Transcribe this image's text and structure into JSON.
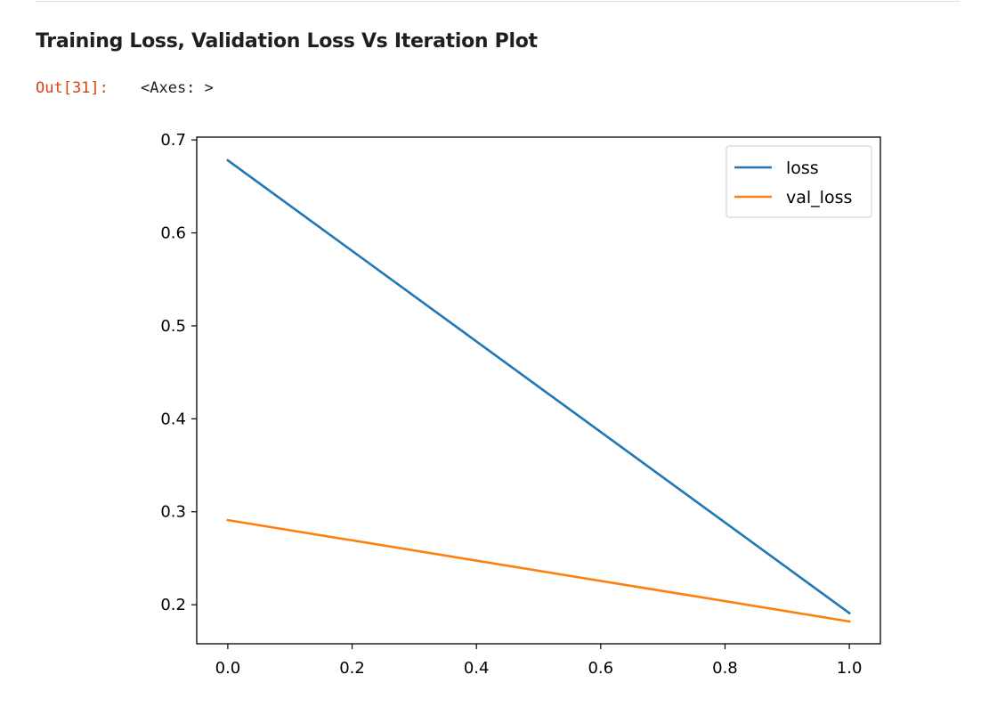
{
  "cell": {
    "heading": "Training Loss, Validation Loss Vs Iteration Plot",
    "out_prompt": "Out[31]:",
    "out_text": "<Axes: >"
  },
  "chart_data": {
    "type": "line",
    "x": [
      0.0,
      1.0
    ],
    "series": [
      {
        "name": "loss",
        "values": [
          0.678,
          0.191
        ],
        "color": "#1f77b4"
      },
      {
        "name": "val_loss",
        "values": [
          0.291,
          0.182
        ],
        "color": "#ff7f0e"
      }
    ],
    "xlim": [
      -0.05,
      1.05
    ],
    "ylim": [
      0.158,
      0.703
    ],
    "xticks": [
      0.0,
      0.2,
      0.4,
      0.6,
      0.8,
      1.0
    ],
    "xtick_labels": [
      "0.0",
      "0.2",
      "0.4",
      "0.6",
      "0.8",
      "1.0"
    ],
    "yticks": [
      0.2,
      0.3,
      0.4,
      0.5,
      0.6,
      0.7
    ],
    "ytick_labels": [
      "0.2",
      "0.3",
      "0.4",
      "0.5",
      "0.6",
      "0.7"
    ],
    "legend_position": "top-right",
    "grid": false
  }
}
